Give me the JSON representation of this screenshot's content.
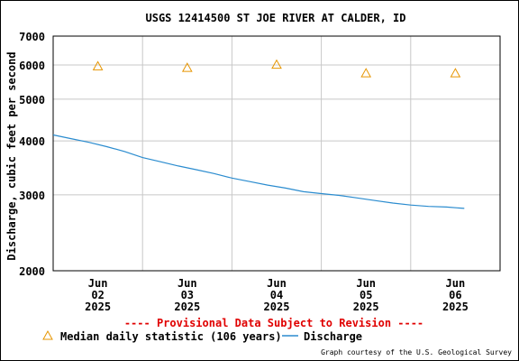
{
  "chart_data": {
    "type": "line",
    "title": "USGS 12414500 ST JOE RIVER AT CALDER, ID",
    "ylabel": "Discharge, cubic feet per second",
    "xlabel": "",
    "yscale": "log",
    "ylim": [
      2000,
      7000
    ],
    "yticks": [
      "7000",
      "6000",
      "5000",
      "4000",
      "3000",
      "2000"
    ],
    "ytick_values": [
      7000,
      6000,
      5000,
      4000,
      3000,
      2000
    ],
    "xlim": [
      0,
      5
    ],
    "xticks": [
      {
        "x": 0.5,
        "line1": "Jun",
        "line2": "02",
        "line3": "2025"
      },
      {
        "x": 1.5,
        "line1": "Jun",
        "line2": "03",
        "line3": "2025"
      },
      {
        "x": 2.5,
        "line1": "Jun",
        "line2": "04",
        "line3": "2025"
      },
      {
        "x": 3.5,
        "line1": "Jun",
        "line2": "05",
        "line3": "2025"
      },
      {
        "x": 4.5,
        "line1": "Jun",
        "line2": "06",
        "line3": "2025"
      }
    ],
    "grid": true,
    "series": [
      {
        "name": "Median daily statistic (106 years)",
        "marker": "triangle",
        "color": "#e69500",
        "x": [
          0.5,
          1.5,
          2.5,
          3.5,
          4.5
        ],
        "y": [
          5960,
          5910,
          6010,
          5740,
          5740
        ]
      },
      {
        "name": "Discharge",
        "color": "#2b8ccf",
        "x": [
          0.0,
          0.2,
          0.4,
          0.6,
          0.8,
          1.0,
          1.2,
          1.4,
          1.6,
          1.8,
          2.0,
          2.2,
          2.4,
          2.6,
          2.8,
          3.0,
          3.2,
          3.4,
          3.6,
          3.8,
          4.0,
          4.2,
          4.4,
          4.6
        ],
        "y": [
          4130,
          4050,
          3970,
          3880,
          3780,
          3660,
          3580,
          3500,
          3430,
          3360,
          3280,
          3220,
          3160,
          3110,
          3050,
          3020,
          2990,
          2950,
          2910,
          2870,
          2840,
          2820,
          2810,
          2790
        ]
      }
    ],
    "legend": [
      "Median daily statistic (106 years)",
      "Discharge"
    ],
    "legend_placement": "bottom"
  },
  "notes": {
    "provisional": "---- Provisional Data Subject to Revision ----",
    "provisional_color": "#e00000",
    "courtesy": "Graph courtesy of the U.S. Geological Survey"
  }
}
